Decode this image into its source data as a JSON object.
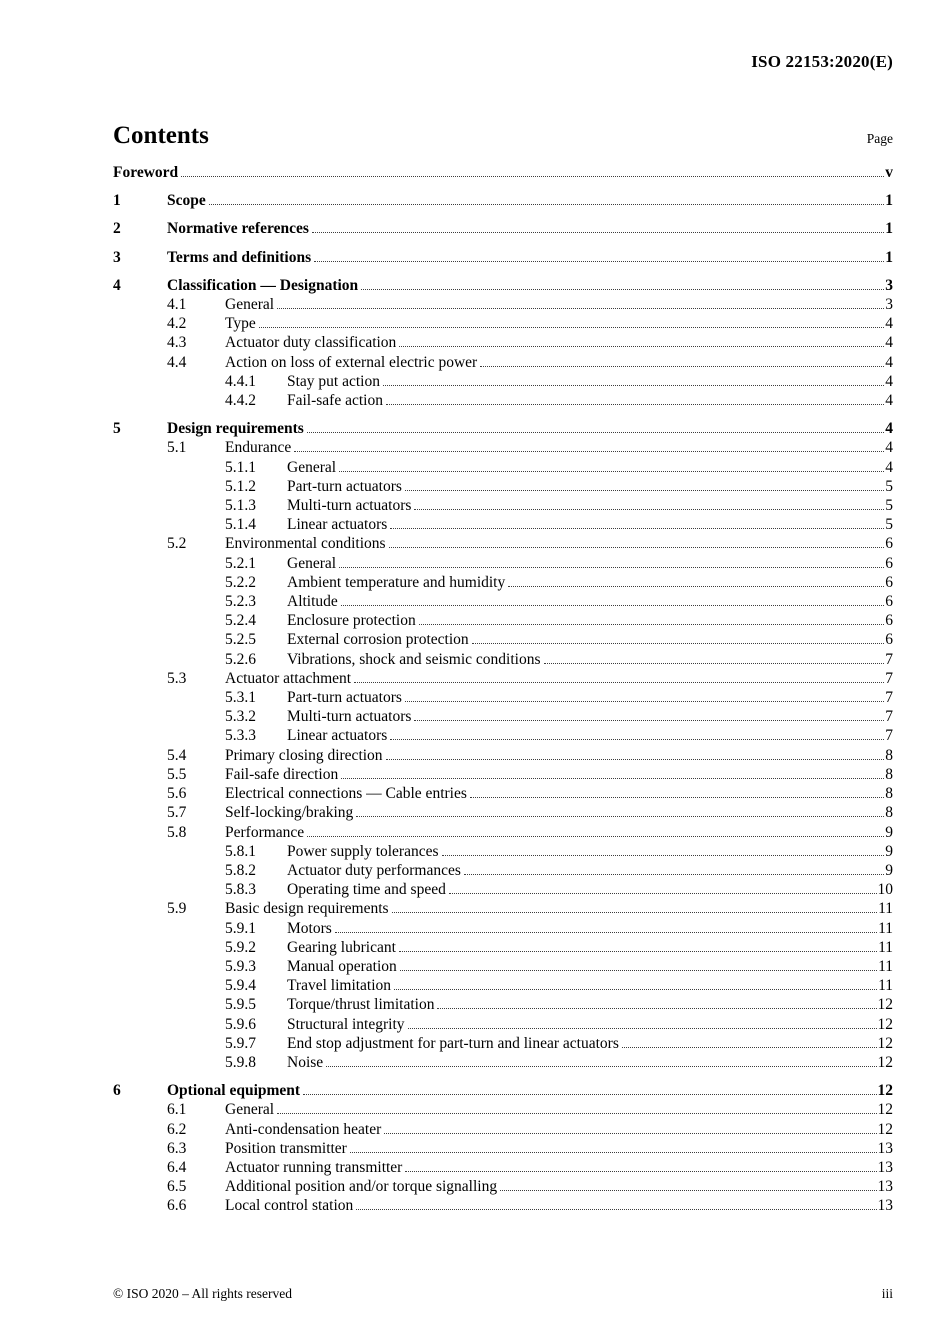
{
  "page": {
    "header_ref": "ISO 22153:2020(E)",
    "title": "Contents",
    "page_label": "Page",
    "footer_left": "© ISO 2020 – All rights reserved",
    "footer_right": "iii"
  },
  "toc": {
    "entries": [
      {
        "level": 0,
        "num": "",
        "title": "Foreword",
        "page": "v",
        "bold": true
      },
      {
        "level": 1,
        "num": "1",
        "title": "Scope",
        "page": "1",
        "bold": true
      },
      {
        "level": 1,
        "num": "2",
        "title": "Normative references",
        "page": "1",
        "bold": true
      },
      {
        "level": 1,
        "num": "3",
        "title": "Terms and definitions",
        "page": "1",
        "bold": true
      },
      {
        "level": 1,
        "num": "4",
        "title": "Classification — Designation",
        "page": "3",
        "bold": true
      },
      {
        "level": 2,
        "num": "4.1",
        "title": "General",
        "page": "3",
        "bold": false
      },
      {
        "level": 2,
        "num": "4.2",
        "title": "Type",
        "page": "4",
        "bold": false
      },
      {
        "level": 2,
        "num": "4.3",
        "title": "Actuator duty classification",
        "page": "4",
        "bold": false
      },
      {
        "level": 2,
        "num": "4.4",
        "title": "Action on loss of external electric power",
        "page": "4",
        "bold": false
      },
      {
        "level": 3,
        "num": "4.4.1",
        "title": "Stay put action",
        "page": "4",
        "bold": false
      },
      {
        "level": 3,
        "num": "4.4.2",
        "title": "Fail-safe action",
        "page": "4",
        "bold": false
      },
      {
        "level": 1,
        "num": "5",
        "title": "Design requirements",
        "page": "4",
        "bold": true
      },
      {
        "level": 2,
        "num": "5.1",
        "title": "Endurance",
        "page": "4",
        "bold": false
      },
      {
        "level": 3,
        "num": "5.1.1",
        "title": "General",
        "page": "4",
        "bold": false
      },
      {
        "level": 3,
        "num": "5.1.2",
        "title": "Part-turn actuators",
        "page": "5",
        "bold": false
      },
      {
        "level": 3,
        "num": "5.1.3",
        "title": "Multi-turn actuators",
        "page": "5",
        "bold": false
      },
      {
        "level": 3,
        "num": "5.1.4",
        "title": "Linear actuators",
        "page": "5",
        "bold": false
      },
      {
        "level": 2,
        "num": "5.2",
        "title": "Environmental conditions",
        "page": "6",
        "bold": false
      },
      {
        "level": 3,
        "num": "5.2.1",
        "title": "General",
        "page": "6",
        "bold": false
      },
      {
        "level": 3,
        "num": "5.2.2",
        "title": "Ambient temperature and humidity",
        "page": "6",
        "bold": false
      },
      {
        "level": 3,
        "num": "5.2.3",
        "title": "Altitude",
        "page": "6",
        "bold": false
      },
      {
        "level": 3,
        "num": "5.2.4",
        "title": "Enclosure protection",
        "page": "6",
        "bold": false
      },
      {
        "level": 3,
        "num": "5.2.5",
        "title": "External corrosion protection",
        "page": "6",
        "bold": false
      },
      {
        "level": 3,
        "num": "5.2.6",
        "title": "Vibrations, shock and seismic conditions",
        "page": "7",
        "bold": false
      },
      {
        "level": 2,
        "num": "5.3",
        "title": "Actuator attachment",
        "page": "7",
        "bold": false
      },
      {
        "level": 3,
        "num": "5.3.1",
        "title": "Part-turn actuators",
        "page": "7",
        "bold": false
      },
      {
        "level": 3,
        "num": "5.3.2",
        "title": "Multi-turn actuators",
        "page": "7",
        "bold": false
      },
      {
        "level": 3,
        "num": "5.3.3",
        "title": "Linear actuators",
        "page": "7",
        "bold": false
      },
      {
        "level": 2,
        "num": "5.4",
        "title": "Primary closing direction",
        "page": "8",
        "bold": false
      },
      {
        "level": 2,
        "num": "5.5",
        "title": "Fail-safe direction",
        "page": "8",
        "bold": false
      },
      {
        "level": 2,
        "num": "5.6",
        "title": "Electrical connections — Cable entries",
        "page": "8",
        "bold": false
      },
      {
        "level": 2,
        "num": "5.7",
        "title": "Self-locking/braking",
        "page": "8",
        "bold": false
      },
      {
        "level": 2,
        "num": "5.8",
        "title": "Performance",
        "page": "9",
        "bold": false
      },
      {
        "level": 3,
        "num": "5.8.1",
        "title": "Power supply tolerances",
        "page": "9",
        "bold": false
      },
      {
        "level": 3,
        "num": "5.8.2",
        "title": "Actuator duty performances",
        "page": "9",
        "bold": false
      },
      {
        "level": 3,
        "num": "5.8.3",
        "title": "Operating time and speed",
        "page": "10",
        "bold": false
      },
      {
        "level": 2,
        "num": "5.9",
        "title": "Basic design requirements",
        "page": "11",
        "bold": false
      },
      {
        "level": 3,
        "num": "5.9.1",
        "title": "Motors",
        "page": "11",
        "bold": false
      },
      {
        "level": 3,
        "num": "5.9.2",
        "title": "Gearing lubricant",
        "page": "11",
        "bold": false
      },
      {
        "level": 3,
        "num": "5.9.3",
        "title": "Manual operation",
        "page": "11",
        "bold": false
      },
      {
        "level": 3,
        "num": "5.9.4",
        "title": "Travel limitation",
        "page": "11",
        "bold": false
      },
      {
        "level": 3,
        "num": "5.9.5",
        "title": "Torque/thrust limitation",
        "page": "12",
        "bold": false
      },
      {
        "level": 3,
        "num": "5.9.6",
        "title": "Structural integrity",
        "page": "12",
        "bold": false
      },
      {
        "level": 3,
        "num": "5.9.7",
        "title": "End stop adjustment for part-turn and linear actuators",
        "page": "12",
        "bold": false
      },
      {
        "level": 3,
        "num": "5.9.8",
        "title": "Noise",
        "page": "12",
        "bold": false
      },
      {
        "level": 1,
        "num": "6",
        "title": "Optional equipment",
        "page": "12",
        "bold": true
      },
      {
        "level": 2,
        "num": "6.1",
        "title": "General",
        "page": "12",
        "bold": false
      },
      {
        "level": 2,
        "num": "6.2",
        "title": "Anti-condensation heater",
        "page": "12",
        "bold": false
      },
      {
        "level": 2,
        "num": "6.3",
        "title": "Position transmitter",
        "page": "13",
        "bold": false
      },
      {
        "level": 2,
        "num": "6.4",
        "title": "Actuator running transmitter",
        "page": "13",
        "bold": false
      },
      {
        "level": 2,
        "num": "6.5",
        "title": "Additional position and/or torque signalling",
        "page": "13",
        "bold": false
      },
      {
        "level": 2,
        "num": "6.6",
        "title": "Local control station",
        "page": "13",
        "bold": false
      }
    ]
  }
}
